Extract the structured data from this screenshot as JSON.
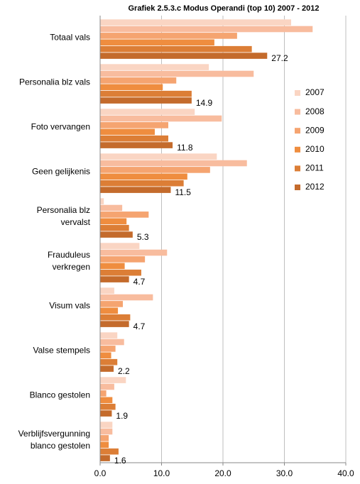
{
  "chart_data": {
    "type": "hbar",
    "title": "Grafiek 2.5.3.c Modus Operandi (top 10) 2007 - 2012",
    "categories": [
      "Totaal vals",
      "Personalia blz vals",
      "Foto vervangen",
      "Geen gelijkenis",
      "Personalia blz\nvervalst",
      "Frauduleus\nverkregen",
      "Visum vals",
      "Valse stempels",
      "Blanco gestolen",
      "Verblijfsvergunning\nblanco gestolen"
    ],
    "series": [
      {
        "name": "2007",
        "color": "#fad5c3",
        "values": [
          31.1,
          17.7,
          15.4,
          19.0,
          0.6,
          6.4,
          2.3,
          2.8,
          4.2,
          2.0
        ]
      },
      {
        "name": "2008",
        "color": "#f8bc9e",
        "values": [
          34.6,
          25.0,
          19.8,
          23.9,
          3.6,
          10.9,
          8.6,
          3.9,
          2.3,
          2.0
        ]
      },
      {
        "name": "2009",
        "color": "#f5a470",
        "values": [
          22.3,
          12.4,
          11.1,
          17.9,
          7.9,
          7.3,
          3.7,
          2.5,
          1.0,
          1.4
        ]
      },
      {
        "name": "2010",
        "color": "#ef8d3f",
        "values": [
          18.6,
          10.2,
          8.9,
          14.2,
          4.3,
          4.0,
          2.9,
          1.8,
          2.0,
          1.4
        ]
      },
      {
        "name": "2011",
        "color": "#dc7e36",
        "values": [
          24.7,
          14.9,
          11.1,
          13.6,
          4.7,
          6.7,
          4.9,
          2.8,
          2.5,
          3.0
        ]
      },
      {
        "name": "2012",
        "color": "#c46b2c",
        "values": [
          27.2,
          14.9,
          11.8,
          11.5,
          5.3,
          4.7,
          4.7,
          2.2,
          1.9,
          1.6
        ],
        "show_value_labels": true
      }
    ],
    "xlim": [
      0,
      40
    ],
    "xticks": [
      {
        "value": 0,
        "label": "0.0"
      },
      {
        "value": 10,
        "label": "10.0"
      },
      {
        "value": 20,
        "label": "20.0"
      },
      {
        "value": 30,
        "label": "30.0"
      },
      {
        "value": 40,
        "label": "40.0"
      }
    ],
    "grid": true,
    "legend": "right"
  }
}
